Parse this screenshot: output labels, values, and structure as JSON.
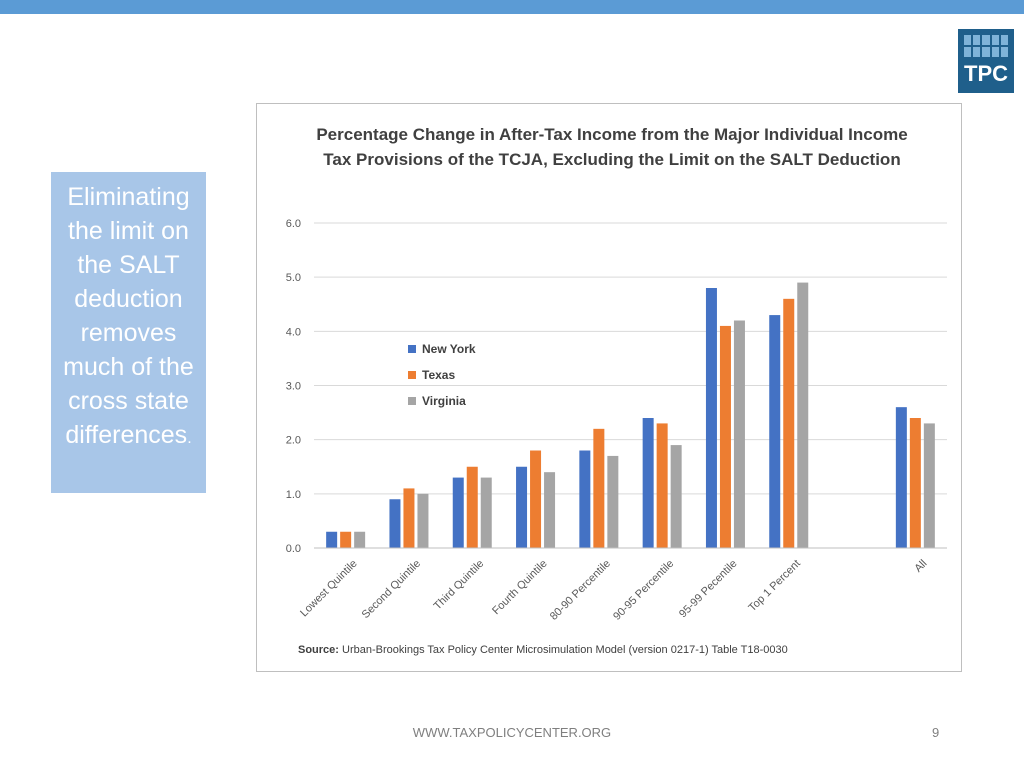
{
  "colors": {
    "top_bar": "#5b9bd5",
    "callout_bg": "#a8c6e8",
    "logo_bg": "#1f5f8b",
    "new_york": "#4472c4",
    "texas": "#ed7d31",
    "virginia": "#a5a5a5"
  },
  "logo": {
    "text": "TPC"
  },
  "callout": {
    "text": "Eliminating the limit on the SALT deduction removes much of the cross state differences",
    "trailing": "."
  },
  "footer": {
    "url": "WWW.TAXPOLICYCENTER.ORG",
    "page_number": "9"
  },
  "source": {
    "label": "Source:",
    "text": " Urban-Brookings Tax Policy Center Microsimulation Model (version 0217-1) Table T18-0030"
  },
  "chart_data": {
    "type": "bar",
    "title": "Percentage Change in After-Tax Income from the Major Individual Income Tax Provisions of the TCJA, Excluding the Limit on the SALT Deduction",
    "categories": [
      "Lowest Quintile",
      "Second Quintile",
      "Third Quintile",
      "Fourth Quintile",
      "80-90 Percentile",
      "90-95 Percentile",
      "95-99 Pecentile",
      "Top 1 Percent",
      "",
      "All"
    ],
    "series": [
      {
        "name": "New York",
        "color": "#4472c4",
        "values": [
          0.3,
          0.9,
          1.3,
          1.5,
          1.8,
          2.4,
          4.8,
          4.3,
          null,
          2.6
        ]
      },
      {
        "name": "Texas",
        "color": "#ed7d31",
        "values": [
          0.3,
          1.1,
          1.5,
          1.8,
          2.2,
          2.3,
          4.1,
          4.6,
          null,
          2.4
        ]
      },
      {
        "name": "Virginia",
        "color": "#a5a5a5",
        "values": [
          0.3,
          1.0,
          1.3,
          1.4,
          1.7,
          1.9,
          4.2,
          4.9,
          null,
          2.3
        ]
      }
    ],
    "ylim": [
      0,
      6
    ],
    "yticks": [
      "0.0",
      "1.0",
      "2.0",
      "3.0",
      "4.0",
      "5.0",
      "6.0"
    ],
    "grid": true,
    "legend_position": "upper-left"
  }
}
